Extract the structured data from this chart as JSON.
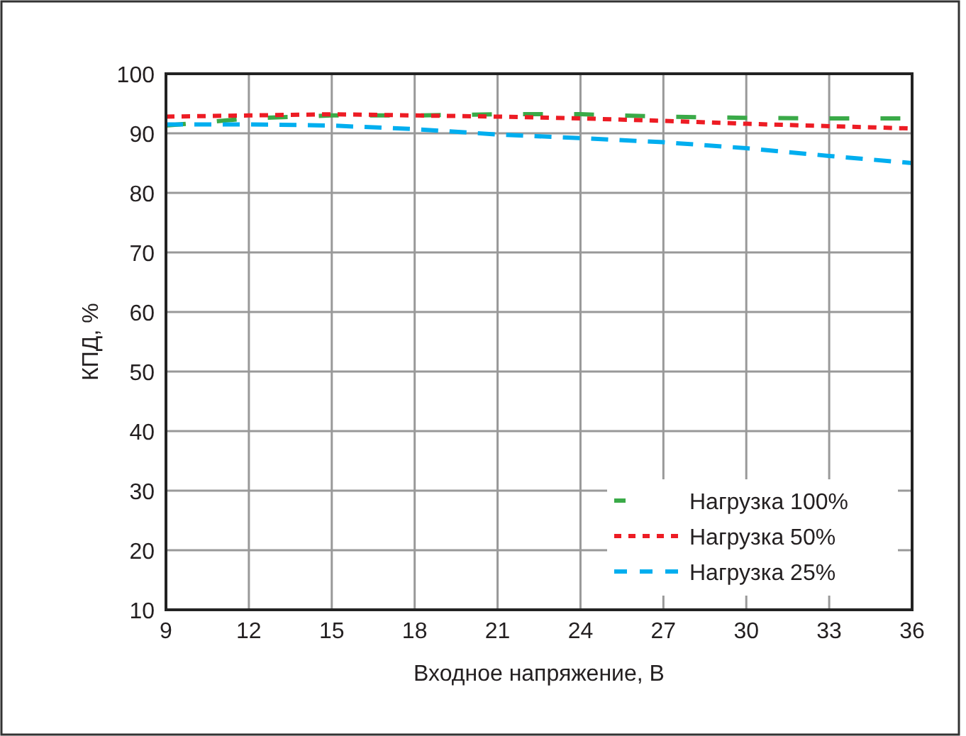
{
  "chart_data": {
    "type": "line",
    "xlabel": "Входное напряжение, В",
    "ylabel": "КПД, %",
    "x": [
      9,
      12,
      15,
      18,
      21,
      24,
      27,
      30,
      33,
      36
    ],
    "series": [
      {
        "name": "Нагрузка 100%",
        "color": "#3aaa48",
        "line_style": "dashed",
        "values": [
          91.3,
          92.5,
          93,
          93,
          93.2,
          93.2,
          92.8,
          92.6,
          92.5,
          92.5
        ]
      },
      {
        "name": "Нагрузка 50%",
        "color": "#ed1c24",
        "line_style": "dotted",
        "values": [
          92.8,
          93,
          93.2,
          93,
          92.8,
          92.5,
          92.1,
          91.6,
          91.2,
          90.8
        ]
      },
      {
        "name": "Нагрузка 25%",
        "color": "#00aeef",
        "line_style": "dashed",
        "values": [
          91.5,
          91.5,
          91.3,
          90.7,
          89.8,
          89.2,
          88.5,
          87.5,
          86.2,
          85
        ]
      }
    ],
    "xlim": [
      9,
      36
    ],
    "xticks": [
      9,
      12,
      15,
      18,
      21,
      24,
      27,
      30,
      33,
      36
    ],
    "ylim": [
      10,
      100
    ],
    "yticks": [
      10,
      20,
      30,
      40,
      50,
      60,
      70,
      80,
      90,
      100
    ],
    "grid": true,
    "legend": "bottom right"
  }
}
